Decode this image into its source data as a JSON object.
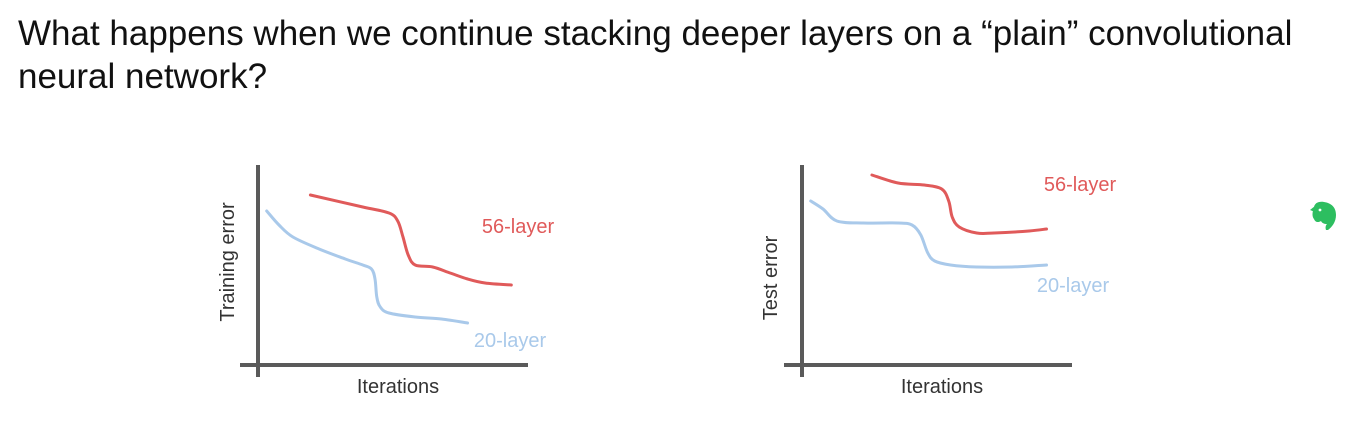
{
  "slide": {
    "title": "What happens when we continue stacking deeper layers on a “plain” convolutional neural network?"
  },
  "icons": {
    "app_badge": "evernote-elephant-icon"
  },
  "colors": {
    "deep_series": "#e05a5a",
    "shallow_series": "#a9c9ea",
    "axis": "#5a5a5a",
    "badge": "#2dbe60"
  },
  "chart_data": [
    {
      "type": "line",
      "xlabel": "Iterations",
      "ylabel": "Training error",
      "grid": false,
      "series": [
        {
          "name": "56-layer",
          "color": "#e05a5a",
          "x": [
            0.3,
            0.6,
            0.75,
            0.8,
            0.83,
            0.86,
            0.9,
            1.0,
            1.1,
            1.2,
            1.3,
            1.45
          ],
          "y": [
            0.85,
            0.79,
            0.76,
            0.72,
            0.64,
            0.55,
            0.5,
            0.49,
            0.46,
            0.43,
            0.41,
            0.4
          ]
        },
        {
          "name": "20-layer",
          "color": "#a9c9ea",
          "x": [
            0.05,
            0.12,
            0.2,
            0.35,
            0.5,
            0.6,
            0.65,
            0.67,
            0.68,
            0.7,
            0.75,
            0.9,
            1.05,
            1.2
          ],
          "y": [
            0.77,
            0.7,
            0.64,
            0.58,
            0.53,
            0.5,
            0.48,
            0.43,
            0.34,
            0.29,
            0.26,
            0.24,
            0.23,
            0.21
          ]
        }
      ]
    },
    {
      "type": "line",
      "xlabel": "Iterations",
      "ylabel": "Test error",
      "grid": false,
      "series": [
        {
          "name": "56-layer",
          "color": "#e05a5a",
          "x": [
            0.4,
            0.55,
            0.7,
            0.8,
            0.84,
            0.86,
            0.9,
            1.0,
            1.1,
            1.3,
            1.4
          ],
          "y": [
            0.95,
            0.91,
            0.9,
            0.88,
            0.82,
            0.74,
            0.69,
            0.66,
            0.66,
            0.67,
            0.68
          ]
        },
        {
          "name": "20-layer",
          "color": "#a9c9ea",
          "x": [
            0.05,
            0.12,
            0.2,
            0.35,
            0.55,
            0.63,
            0.68,
            0.72,
            0.76,
            0.85,
            1.0,
            1.2,
            1.4
          ],
          "y": [
            0.82,
            0.78,
            0.72,
            0.71,
            0.71,
            0.7,
            0.65,
            0.56,
            0.52,
            0.5,
            0.49,
            0.49,
            0.5
          ]
        }
      ]
    }
  ]
}
